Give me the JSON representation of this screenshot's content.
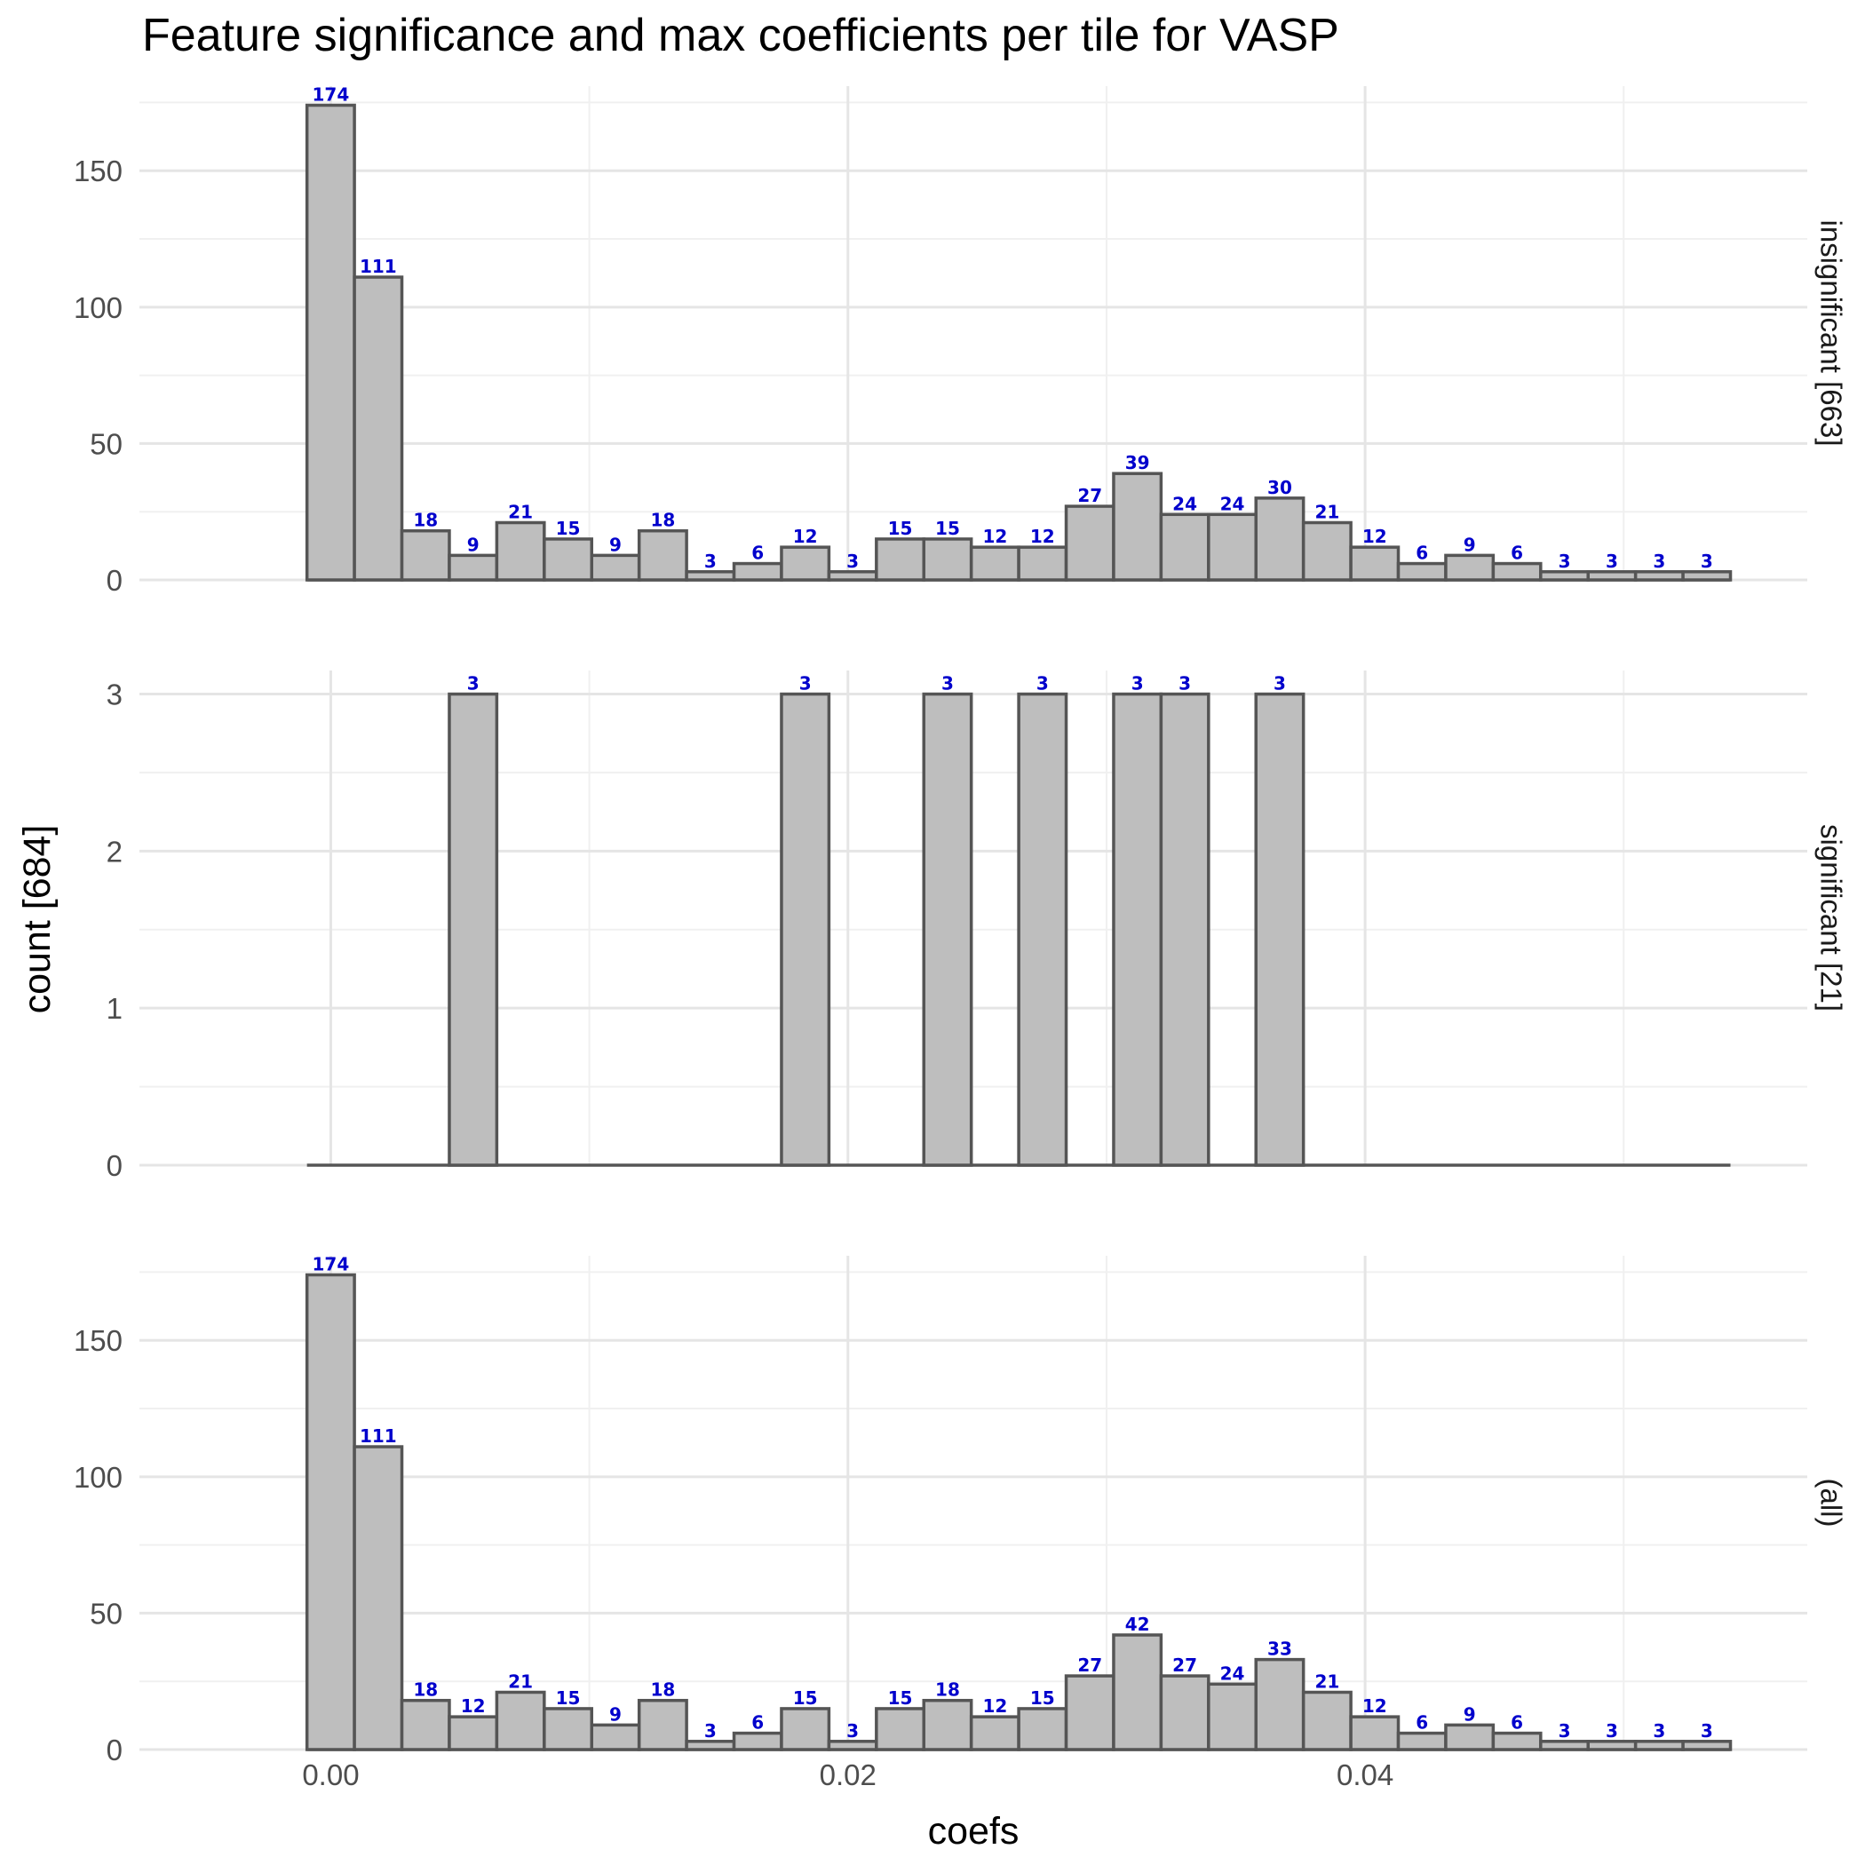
{
  "title": "Feature significance and max coefficients per tile for VASP",
  "chart_data": {
    "type": "bar",
    "title": "Feature significance and max coefficients per tile for VASP",
    "xlabel": "coefs",
    "ylabel": "count [684]",
    "x_ticks": [
      "0.00",
      "0.02",
      "0.04"
    ],
    "x_tick_values": [
      0.0,
      0.02,
      0.04
    ],
    "xlim": [
      -0.0074,
      0.0571
    ],
    "bin_start": -0.00092,
    "bin_width": 0.001835,
    "grid": true,
    "bar_color": "#bebebe",
    "bar_outline_color": "#555555",
    "label_color": "#0000cc",
    "panels": [
      {
        "strip_label": "insignificant [663]",
        "ylim": [
          0,
          181
        ],
        "y_ticks": [
          0,
          50,
          100,
          150
        ],
        "values": [
          174,
          111,
          18,
          9,
          21,
          15,
          9,
          18,
          3,
          6,
          12,
          3,
          15,
          15,
          12,
          12,
          27,
          39,
          24,
          24,
          30,
          21,
          12,
          6,
          9,
          6,
          3,
          3,
          3,
          3
        ]
      },
      {
        "strip_label": "significant [21]",
        "ylim": [
          0,
          3.15
        ],
        "y_ticks": [
          0,
          1,
          2,
          3
        ],
        "values": [
          0,
          0,
          0,
          3,
          0,
          0,
          0,
          0,
          0,
          0,
          3,
          0,
          0,
          3,
          0,
          3,
          0,
          3,
          3,
          0,
          3,
          0,
          0,
          0,
          0,
          0,
          0,
          0,
          0,
          0
        ]
      },
      {
        "strip_label": "(all)",
        "ylim": [
          0,
          181
        ],
        "y_ticks": [
          0,
          50,
          100,
          150
        ],
        "values": [
          174,
          111,
          18,
          12,
          21,
          15,
          9,
          18,
          3,
          6,
          15,
          3,
          15,
          18,
          12,
          15,
          27,
          42,
          27,
          24,
          33,
          21,
          12,
          6,
          9,
          6,
          3,
          3,
          3,
          3
        ]
      }
    ]
  }
}
